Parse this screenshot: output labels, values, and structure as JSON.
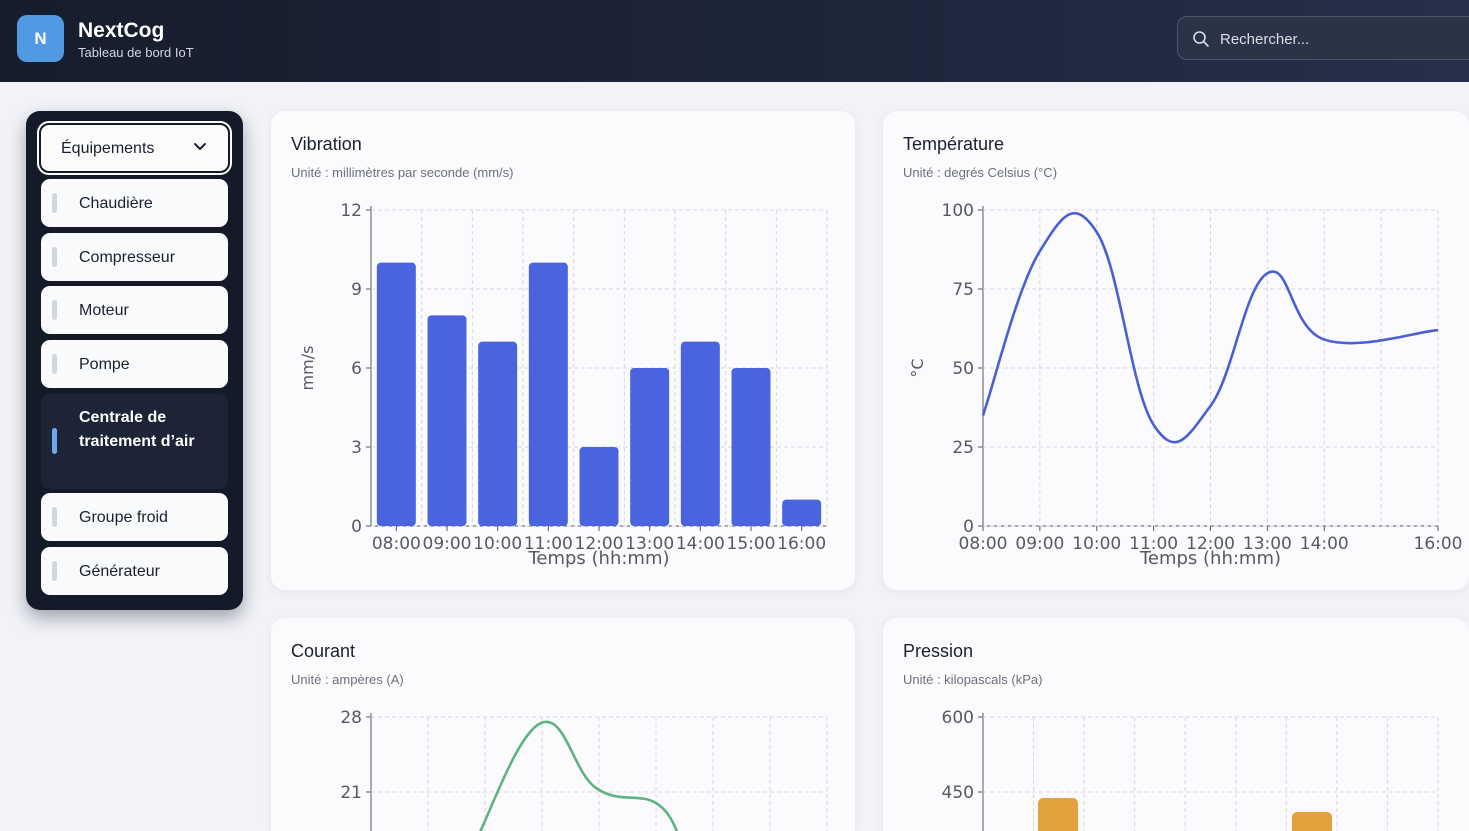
{
  "header": {
    "logo_letter": "N",
    "app_name": "NextCog",
    "subtitle": "Tableau de bord IoT",
    "search_placeholder": "Rechercher..."
  },
  "sidebar": {
    "dropdown_label": "Équipements",
    "items": [
      {
        "label": "Chaudière",
        "active": false
      },
      {
        "label": "Compresseur",
        "active": false
      },
      {
        "label": "Moteur",
        "active": false
      },
      {
        "label": "Pompe",
        "active": false
      },
      {
        "label": "Centrale de traitement d’air",
        "active": true
      },
      {
        "label": "Groupe froid",
        "active": false
      },
      {
        "label": "Générateur",
        "active": false
      }
    ]
  },
  "cards": [
    {
      "title": "Vibration",
      "unit_text": "Unité : millimètres par seconde (mm/s)"
    },
    {
      "title": "Température",
      "unit_text": "Unité : degrés Celsius (°C)"
    },
    {
      "title": "Courant",
      "unit_text": "Unité : ampères (A)"
    },
    {
      "title": "Pression",
      "unit_text": "Unité : kilopascals (kPa)"
    }
  ],
  "colors": {
    "vibration": "#4a64e0",
    "temperature": "#4a5fd6",
    "current": "#5db382",
    "pressure": "#e3a23e"
  },
  "chart_data": [
    {
      "type": "bar",
      "title": "Vibration",
      "categories": [
        "08:00",
        "09:00",
        "10:00",
        "11:00",
        "12:00",
        "13:00",
        "14:00",
        "15:00",
        "16:00"
      ],
      "values": [
        10,
        8,
        7,
        10,
        3,
        6,
        7,
        6,
        1
      ],
      "xlabel": "Temps (hh:mm)",
      "ylabel": "mm/s",
      "ylim": [
        0,
        12
      ],
      "yticks": [
        0,
        3,
        6,
        9,
        12
      ],
      "grid": true
    },
    {
      "type": "line",
      "title": "Température",
      "x": [
        "08:00",
        "09:00",
        "10:00",
        "11:00",
        "12:00",
        "13:00",
        "14:00",
        "16:00"
      ],
      "values": [
        35,
        87,
        93,
        32,
        38,
        80,
        59,
        62
      ],
      "xlabel": "Temps (hh:mm)",
      "ylabel": "°C",
      "ylim": [
        0,
        100
      ],
      "yticks": [
        0,
        25,
        50,
        75,
        100
      ],
      "grid": true
    },
    {
      "type": "line",
      "title": "Courant",
      "ylim_visible": [
        21,
        28
      ],
      "yticks_visible": [
        21,
        28
      ],
      "grid": true
    },
    {
      "type": "bar",
      "title": "Pression",
      "ylim_visible": [
        450,
        600
      ],
      "yticks_visible": [
        450,
        600
      ],
      "grid": true
    }
  ]
}
